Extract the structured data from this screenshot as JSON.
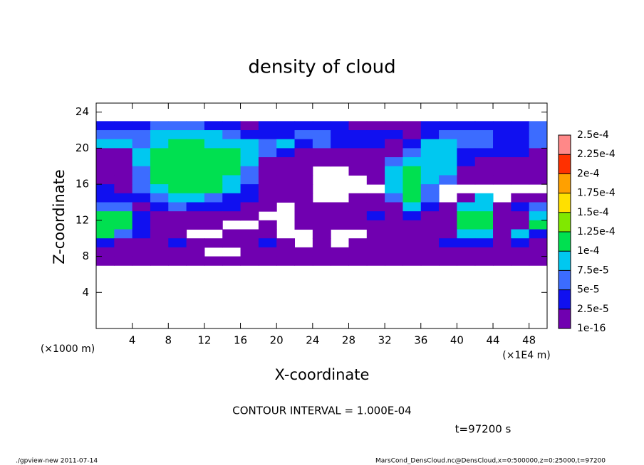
{
  "chart_data": {
    "type": "heatmap",
    "title": "density of cloud",
    "xlabel": "X-coordinate",
    "ylabel": "Z-coordinate",
    "xunit_left": "(×1000 m)",
    "xunit_right": "(×1E4 m)",
    "annotation": "CONTOUR INTERVAL = 1.000E-04",
    "time_label": "t=97200 s",
    "footer_left": "./gpview-new  2011-07-14",
    "footer_right": "MarsCond_DensCloud.nc@DensCloud,x=0:500000,z=0:25000,t=97200",
    "xlim": [
      0,
      50
    ],
    "ylim": [
      0,
      25
    ],
    "xticks": [
      4,
      8,
      12,
      16,
      20,
      24,
      28,
      32,
      36,
      40,
      44,
      48
    ],
    "yticks": [
      4,
      8,
      12,
      16,
      20,
      24
    ],
    "levels": [
      1e-16,
      {
        "value": 2.5e-05,
        "label": "2.5e-5"
      },
      {
        "value": 5e-05,
        "label": "5e-5"
      },
      {
        "value": 7.5e-05,
        "label": "7.5e-5"
      },
      {
        "value": 0.0001,
        "label": "1e-4"
      },
      {
        "value": 0.000125,
        "label": "1.25e-4"
      },
      {
        "value": 0.00015,
        "label": "1.5e-4"
      },
      {
        "value": 0.000175,
        "label": "1.75e-4"
      },
      {
        "value": 0.0002,
        "label": "2e-4"
      },
      {
        "value": 0.000225,
        "label": "2.25e-4"
      },
      {
        "value": 0.00025,
        "label": "2.5e-4"
      }
    ],
    "colors": [
      "#7000b0",
      "#1010f0",
      "#3c6cff",
      "#00c8f0",
      "#00e050",
      "#80e800",
      "#ffe000",
      "#ffa000",
      "#ff3000",
      "#ff8888"
    ],
    "x": [
      1,
      3,
      5,
      7,
      9,
      11,
      13,
      15,
      17,
      19,
      21,
      23,
      25,
      27,
      29,
      31,
      33,
      35,
      37,
      39,
      41,
      43,
      45,
      47,
      49
    ],
    "y": [
      22.5,
      21.5,
      20.5,
      19.5,
      18.5,
      17.5,
      16.5,
      15.5,
      14.5,
      13.5,
      12.5,
      11.5,
      10.5,
      9.5,
      8.5,
      7.5
    ],
    "z": [
      [
        3e-05,
        3e-05,
        3e-05,
        6e-05,
        6e-05,
        6e-05,
        3e-05,
        3e-05,
        1e-05,
        3e-05,
        3e-05,
        3e-05,
        3e-05,
        3e-05,
        1e-05,
        1e-05,
        1e-05,
        1e-05,
        3e-05,
        3e-05,
        3e-05,
        3e-05,
        3e-05,
        3e-05,
        6e-05
      ],
      [
        6e-05,
        6e-05,
        6e-05,
        9e-05,
        9e-05,
        9e-05,
        9e-05,
        6e-05,
        3e-05,
        3e-05,
        3e-05,
        6e-05,
        6e-05,
        3e-05,
        3e-05,
        3e-05,
        3e-05,
        1e-05,
        3e-05,
        6e-05,
        6e-05,
        6e-05,
        3e-05,
        3e-05,
        6e-05
      ],
      [
        9e-05,
        9e-05,
        6e-05,
        9e-05,
        0.00011,
        0.00011,
        9e-05,
        9e-05,
        9e-05,
        6e-05,
        9e-05,
        3e-05,
        6e-05,
        3e-05,
        3e-05,
        3e-05,
        1e-05,
        3e-05,
        9e-05,
        9e-05,
        6e-05,
        6e-05,
        3e-05,
        3e-05,
        6e-05
      ],
      [
        1e-05,
        1e-05,
        9e-05,
        0.00011,
        0.00011,
        0.00011,
        0.00011,
        0.00011,
        9e-05,
        6e-05,
        3e-05,
        1e-05,
        1e-05,
        1e-05,
        1e-05,
        1e-05,
        1e-05,
        6e-05,
        9e-05,
        9e-05,
        3e-05,
        3e-05,
        3e-05,
        3e-05,
        1e-05
      ],
      [
        1e-05,
        1e-05,
        9e-05,
        0.00011,
        0.00011,
        0.00011,
        0.00011,
        0.00011,
        9e-05,
        1e-05,
        1e-05,
        1e-05,
        1e-05,
        1e-05,
        1e-05,
        1e-05,
        6e-05,
        9e-05,
        9e-05,
        9e-05,
        3e-05,
        1e-05,
        1e-05,
        1e-05,
        1e-05
      ],
      [
        1e-05,
        1e-05,
        6e-05,
        0.00011,
        0.00011,
        0.00011,
        0.00011,
        0.00011,
        6e-05,
        1e-05,
        1e-05,
        1e-05,
        null,
        null,
        1e-05,
        1e-05,
        9e-05,
        0.00011,
        9e-05,
        9e-05,
        1e-05,
        1e-05,
        1e-05,
        1e-05,
        1e-05
      ],
      [
        1e-05,
        1e-05,
        6e-05,
        0.00011,
        0.00011,
        0.00011,
        0.00011,
        9e-05,
        6e-05,
        1e-05,
        1e-05,
        1e-05,
        null,
        null,
        null,
        1e-05,
        9e-05,
        0.00011,
        9e-05,
        6e-05,
        1e-05,
        1e-05,
        1e-05,
        1e-05,
        1e-05
      ],
      [
        3e-05,
        1e-05,
        6e-05,
        9e-05,
        0.00011,
        0.00011,
        0.00011,
        9e-05,
        3e-05,
        1e-05,
        1e-05,
        1e-05,
        null,
        null,
        null,
        null,
        9e-05,
        0.00011,
        6e-05,
        null,
        null,
        null,
        null,
        null,
        null
      ],
      [
        3e-05,
        3e-05,
        3e-05,
        6e-05,
        9e-05,
        9e-05,
        6e-05,
        3e-05,
        3e-05,
        1e-05,
        1e-05,
        1e-05,
        null,
        null,
        1e-05,
        1e-05,
        6e-05,
        0.00011,
        6e-05,
        null,
        1e-05,
        9e-05,
        null,
        1e-05,
        1e-05
      ],
      [
        6e-05,
        6e-05,
        1e-05,
        3e-05,
        6e-05,
        3e-05,
        3e-05,
        3e-05,
        1e-05,
        1e-05,
        null,
        1e-05,
        1e-05,
        1e-05,
        1e-05,
        1e-05,
        1e-05,
        9e-05,
        3e-05,
        1e-05,
        9e-05,
        9e-05,
        1e-05,
        3e-05,
        6e-05
      ],
      [
        0.00011,
        0.00011,
        3e-05,
        1e-05,
        1e-05,
        1e-05,
        1e-05,
        1e-05,
        1e-05,
        null,
        null,
        1e-05,
        1e-05,
        1e-05,
        1e-05,
        3e-05,
        1e-05,
        3e-05,
        1e-05,
        1e-05,
        0.00011,
        0.00011,
        1e-05,
        1e-05,
        9e-05
      ],
      [
        0.00011,
        0.00011,
        3e-05,
        1e-05,
        1e-05,
        1e-05,
        1e-05,
        null,
        null,
        1e-05,
        null,
        1e-05,
        1e-05,
        1e-05,
        1e-05,
        1e-05,
        1e-05,
        1e-05,
        1e-05,
        1e-05,
        0.00011,
        0.00011,
        1e-05,
        1e-05,
        0.00011
      ],
      [
        0.00011,
        6e-05,
        3e-05,
        1e-05,
        1e-05,
        null,
        null,
        1e-05,
        1e-05,
        1e-05,
        null,
        null,
        1e-05,
        null,
        null,
        1e-05,
        1e-05,
        1e-05,
        1e-05,
        1e-05,
        9e-05,
        9e-05,
        1e-05,
        9e-05,
        3e-05
      ],
      [
        3e-05,
        1e-05,
        1e-05,
        1e-05,
        3e-05,
        1e-05,
        1e-05,
        1e-05,
        1e-05,
        3e-05,
        1e-05,
        null,
        1e-05,
        null,
        1e-05,
        1e-05,
        1e-05,
        1e-05,
        1e-05,
        3e-05,
        3e-05,
        3e-05,
        1e-05,
        3e-05,
        1e-05
      ],
      [
        1e-05,
        1e-05,
        1e-05,
        1e-05,
        1e-05,
        1e-05,
        null,
        null,
        1e-05,
        1e-05,
        1e-05,
        1e-05,
        1e-05,
        1e-05,
        1e-05,
        1e-05,
        1e-05,
        1e-05,
        1e-05,
        1e-05,
        1e-05,
        1e-05,
        1e-05,
        1e-05,
        1e-05
      ],
      [
        1e-05,
        1e-05,
        1e-05,
        1e-05,
        1e-05,
        1e-05,
        1e-05,
        1e-05,
        1e-05,
        1e-05,
        1e-05,
        1e-05,
        1e-05,
        1e-05,
        1e-05,
        1e-05,
        1e-05,
        1e-05,
        1e-05,
        1e-05,
        1e-05,
        1e-05,
        1e-05,
        1e-05,
        1e-05
      ]
    ]
  }
}
